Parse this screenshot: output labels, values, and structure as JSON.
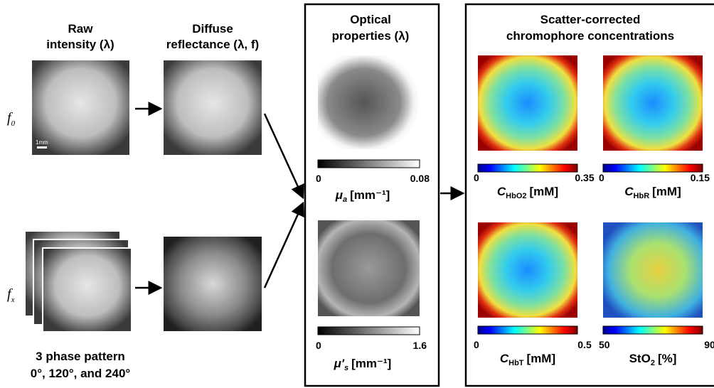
{
  "columns": {
    "raw": {
      "title": [
        "Raw",
        "intensity (λ)"
      ]
    },
    "diffuse": {
      "title": [
        "Diffuse",
        "reflectance (λ, f)"
      ]
    }
  },
  "rows": [
    {
      "symbol": "f",
      "subscript": "0"
    },
    {
      "symbol": "f",
      "subscript": "x"
    }
  ],
  "scale_bar": "1mm",
  "phase_caption": [
    "3 phase pattern",
    "0°, 120°, and 240°"
  ],
  "optical": {
    "title": [
      "Optical",
      "properties (λ)"
    ],
    "maps": [
      {
        "symbol": "μ",
        "subscript": "a",
        "unit": "[mm⁻¹]",
        "min": "0",
        "max": "0.08"
      },
      {
        "symbol": "μ′",
        "subscript": "s",
        "unit": "[mm⁻¹]",
        "min": "0",
        "max": "1.6"
      }
    ]
  },
  "chromophores": {
    "title": [
      "Scatter-corrected",
      "chromophore concentrations"
    ],
    "maps": [
      {
        "symbol": "C",
        "subscript": "HbO2",
        "unit": "[mM]",
        "min": "0",
        "max": "0.35"
      },
      {
        "symbol": "C",
        "subscript": "HbR",
        "unit": "[mM]",
        "min": "0",
        "max": "0.15"
      },
      {
        "symbol": "C",
        "subscript": "HbT",
        "unit": "[mM]",
        "min": "0",
        "max": "0.5"
      },
      {
        "symbol": "StO",
        "subscript": "2",
        "unit": "[%]",
        "min": "50",
        "max": "90"
      }
    ]
  }
}
